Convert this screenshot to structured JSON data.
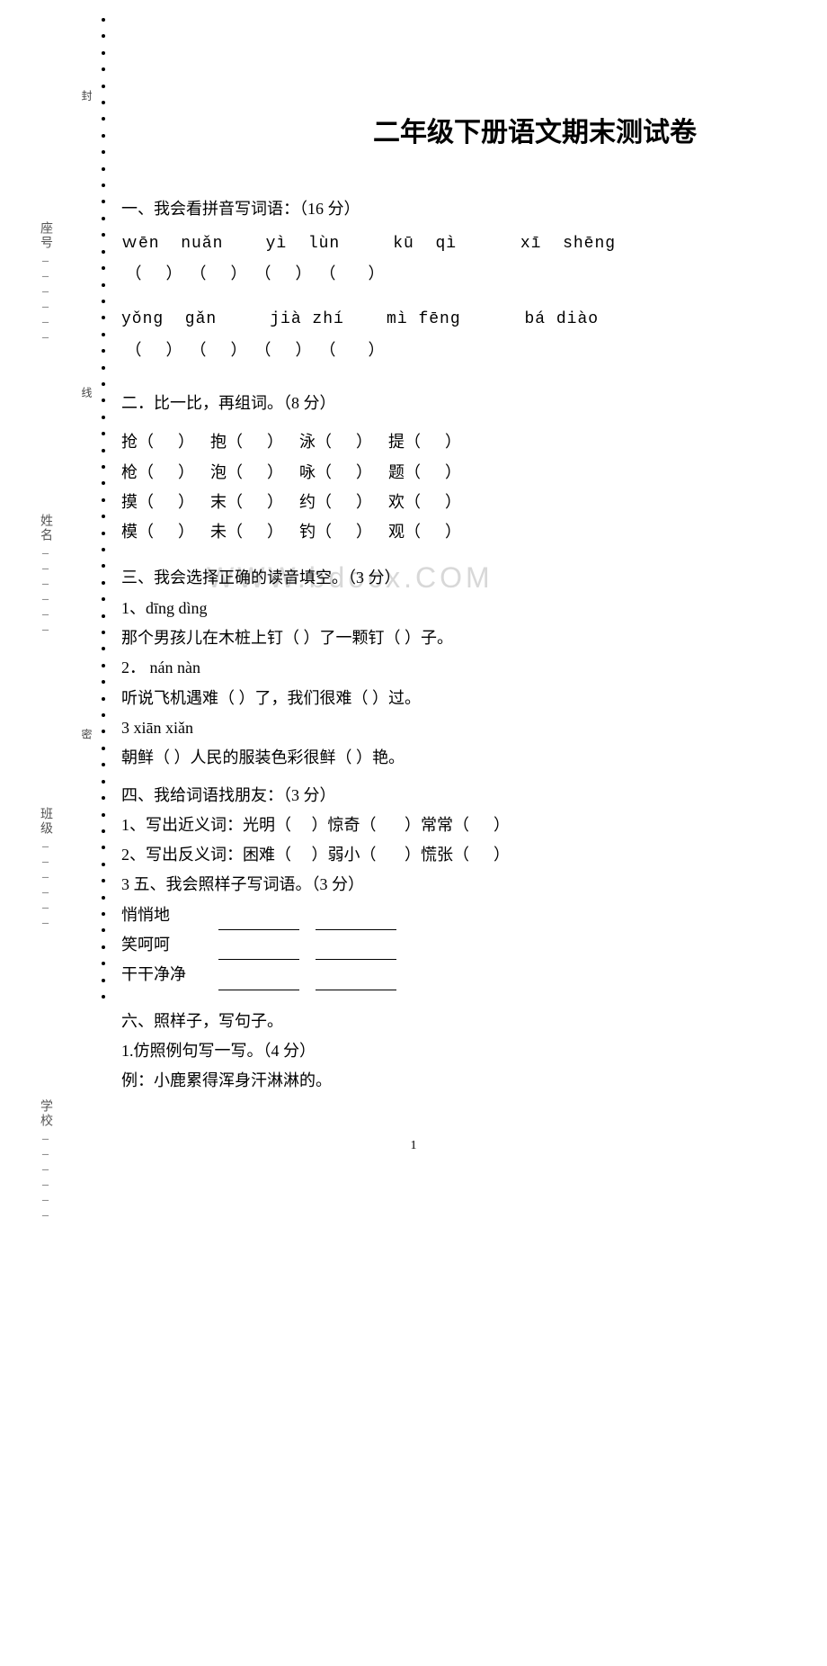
{
  "title": "二年级下册语文期末测试卷",
  "side": {
    "school": "学校",
    "class": "班级",
    "name": "姓名",
    "seat": "座号"
  },
  "seal_top": "封",
  "seal_mid": "线",
  "seal_bot": "密",
  "watermark": "WWW.bdocx.COM",
  "s1": {
    "head": "一、我会看拼音写词语：（16 分）",
    "row1_pinyin": "ｗēn  nuǎn    yì  lùn     kū  qì      xī  shēng",
    "row1_paren": " （      ）  （      ）  （      ）  （        ）",
    "row2_pinyin": "yǒng  gǎn     jià zhí    mì fēng      bá diào",
    "row2_paren": " （      ）  （      ）  （      ）  （        ）"
  },
  "s2": {
    "head": "二．比一比，再组词。（8 分）",
    "r1": "抢（      ）    抱（      ）    泳（      ）    提（      ）",
    "r2": "枪（      ）    泡（      ）    咏（      ）    题（      ）",
    "r3": "摸（      ）    末（      ）    约（      ）    欢（      ）",
    "r4": "模（      ）    未（      ）    钓（      ）    观（      ）"
  },
  "s3": {
    "head": "三、我会选择正确的读音填空。（3 分）",
    "l1": "1、dīng dìng",
    "l2": "那个男孩儿在木桩上钉（     ）了一颗钉（     ）子。",
    "l3": "2． nán nàn",
    "l4": "听说飞机遇难（     ）了，我们很难（     ）过。",
    "l5": "3 xiān xiǎn",
    "l6": "朝鲜（     ）人民的服装色彩很鲜（     ）艳。"
  },
  "s4": {
    "head": "四、我给词语找朋友：（3 分）",
    "l1": "1、写出近义词：光明（     ）惊奇（       ）常常（      ）",
    "l2": "2、写出反义词：困难（     ）弱小（       ）慌张（      ）"
  },
  "s5": {
    "head": "3 五、我会照样子写词语。（3 分）",
    "w1": "悄悄地",
    "w2": "笑呵呵",
    "w3": "干干净净"
  },
  "s6": {
    "head": "六、照样子，写句子。",
    "l1": " 1.仿照例句写一写。（4 分）",
    "l2": "  例：小鹿累得浑身汗淋淋的。"
  },
  "page_num": "1"
}
